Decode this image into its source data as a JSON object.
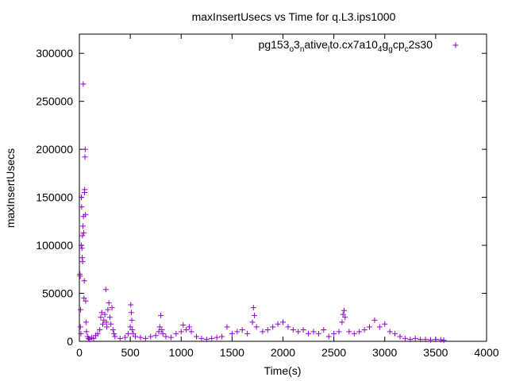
{
  "chart_data": {
    "type": "scatter",
    "title": "maxInsertUsecs vs Time for q.L3.ips1000",
    "xlabel": "Time(s)",
    "ylabel": "maxInsertUsecs",
    "xlim": [
      0,
      4000
    ],
    "ylim": [
      0,
      320000
    ],
    "x_ticks": [
      0,
      500,
      1000,
      1500,
      2000,
      2500,
      3000,
      3500,
      4000
    ],
    "y_ticks": [
      0,
      50000,
      100000,
      150000,
      200000,
      250000,
      300000
    ],
    "x_tick_labels": [
      "0",
      "500",
      "1000",
      "1500",
      "2000",
      "2500",
      "3000",
      "3500",
      "4000"
    ],
    "y_tick_labels": [
      "0",
      "50000",
      "100000",
      "150000",
      "200000",
      "250000",
      "300000"
    ],
    "legend_position": "top-right",
    "color": "#9400d3",
    "series": [
      {
        "name": "pg153_o3_native_lto.cx7a10_4g_gcp_c2s30",
        "legend_parts": [
          {
            "text": "pg153"
          },
          {
            "text": "o",
            "sub": true
          },
          {
            "text": "3"
          },
          {
            "text": "n",
            "sub": true
          },
          {
            "text": "ative"
          },
          {
            "text": "l",
            "sub": true
          },
          {
            "text": "to.cx7a10"
          },
          {
            "text": "4",
            "sub": true
          },
          {
            "text": "g"
          },
          {
            "text": "g",
            "sub": true
          },
          {
            "text": "cp"
          },
          {
            "text": "c",
            "sub": true
          },
          {
            "text": "2s30"
          }
        ],
        "points": [
          [
            5,
            70000
          ],
          [
            8,
            68000
          ],
          [
            10,
            15000
          ],
          [
            12,
            33000
          ],
          [
            15,
            8000
          ],
          [
            18,
            100000
          ],
          [
            20,
            150000
          ],
          [
            22,
            140000
          ],
          [
            25,
            97000
          ],
          [
            28,
            87000
          ],
          [
            30,
            110000
          ],
          [
            32,
            83000
          ],
          [
            35,
            120000
          ],
          [
            38,
            268000
          ],
          [
            40,
            130000
          ],
          [
            42,
            113000
          ],
          [
            45,
            45000
          ],
          [
            48,
            63000
          ],
          [
            50,
            155000
          ],
          [
            52,
            158000
          ],
          [
            55,
            192000
          ],
          [
            57,
            200000
          ],
          [
            60,
            132000
          ],
          [
            62,
            42000
          ],
          [
            65,
            20000
          ],
          [
            70,
            10000
          ],
          [
            80,
            5000
          ],
          [
            90,
            3000
          ],
          [
            100,
            2000
          ],
          [
            120,
            4000
          ],
          [
            140,
            3000
          ],
          [
            160,
            6000
          ],
          [
            180,
            8000
          ],
          [
            200,
            12000
          ],
          [
            210,
            25000
          ],
          [
            220,
            30000
          ],
          [
            230,
            18000
          ],
          [
            240,
            22000
          ],
          [
            250,
            28000
          ],
          [
            260,
            54000
          ],
          [
            265,
            20000
          ],
          [
            270,
            15000
          ],
          [
            280,
            33000
          ],
          [
            290,
            40000
          ],
          [
            300,
            25000
          ],
          [
            310,
            18000
          ],
          [
            320,
            35000
          ],
          [
            330,
            12000
          ],
          [
            340,
            8000
          ],
          [
            350,
            5000
          ],
          [
            400,
            3000
          ],
          [
            450,
            4000
          ],
          [
            480,
            8000
          ],
          [
            500,
            15000
          ],
          [
            505,
            38000
          ],
          [
            510,
            30000
          ],
          [
            515,
            22000
          ],
          [
            520,
            12000
          ],
          [
            530,
            8000
          ],
          [
            550,
            5000
          ],
          [
            600,
            4000
          ],
          [
            650,
            3000
          ],
          [
            700,
            5000
          ],
          [
            750,
            6000
          ],
          [
            780,
            10000
          ],
          [
            790,
            15000
          ],
          [
            800,
            27000
          ],
          [
            810,
            12000
          ],
          [
            820,
            8000
          ],
          [
            850,
            5000
          ],
          [
            900,
            4000
          ],
          [
            950,
            8000
          ],
          [
            1000,
            10000
          ],
          [
            1020,
            17000
          ],
          [
            1050,
            12000
          ],
          [
            1080,
            15000
          ],
          [
            1100,
            10000
          ],
          [
            1150,
            5000
          ],
          [
            1200,
            3000
          ],
          [
            1250,
            2000
          ],
          [
            1300,
            3000
          ],
          [
            1350,
            4000
          ],
          [
            1400,
            5000
          ],
          [
            1450,
            15000
          ],
          [
            1500,
            8000
          ],
          [
            1550,
            10000
          ],
          [
            1600,
            12000
          ],
          [
            1650,
            8000
          ],
          [
            1700,
            20000
          ],
          [
            1710,
            35000
          ],
          [
            1720,
            27000
          ],
          [
            1740,
            15000
          ],
          [
            1800,
            10000
          ],
          [
            1850,
            12000
          ],
          [
            1900,
            15000
          ],
          [
            1950,
            18000
          ],
          [
            2000,
            20000
          ],
          [
            2050,
            15000
          ],
          [
            2100,
            12000
          ],
          [
            2150,
            10000
          ],
          [
            2200,
            12000
          ],
          [
            2250,
            8000
          ],
          [
            2300,
            10000
          ],
          [
            2350,
            8000
          ],
          [
            2400,
            12000
          ],
          [
            2450,
            5000
          ],
          [
            2500,
            8000
          ],
          [
            2550,
            10000
          ],
          [
            2580,
            20000
          ],
          [
            2590,
            28000
          ],
          [
            2600,
            32000
          ],
          [
            2610,
            25000
          ],
          [
            2650,
            10000
          ],
          [
            2700,
            8000
          ],
          [
            2750,
            10000
          ],
          [
            2800,
            12000
          ],
          [
            2850,
            15000
          ],
          [
            2900,
            22000
          ],
          [
            2950,
            15000
          ],
          [
            3000,
            18000
          ],
          [
            3050,
            10000
          ],
          [
            3100,
            8000
          ],
          [
            3150,
            5000
          ],
          [
            3200,
            3000
          ],
          [
            3250,
            2000
          ],
          [
            3300,
            3000
          ],
          [
            3350,
            2000
          ],
          [
            3400,
            2000
          ],
          [
            3450,
            1500
          ],
          [
            3500,
            2000
          ],
          [
            3550,
            1500
          ],
          [
            3580,
            1000
          ]
        ]
      }
    ]
  }
}
